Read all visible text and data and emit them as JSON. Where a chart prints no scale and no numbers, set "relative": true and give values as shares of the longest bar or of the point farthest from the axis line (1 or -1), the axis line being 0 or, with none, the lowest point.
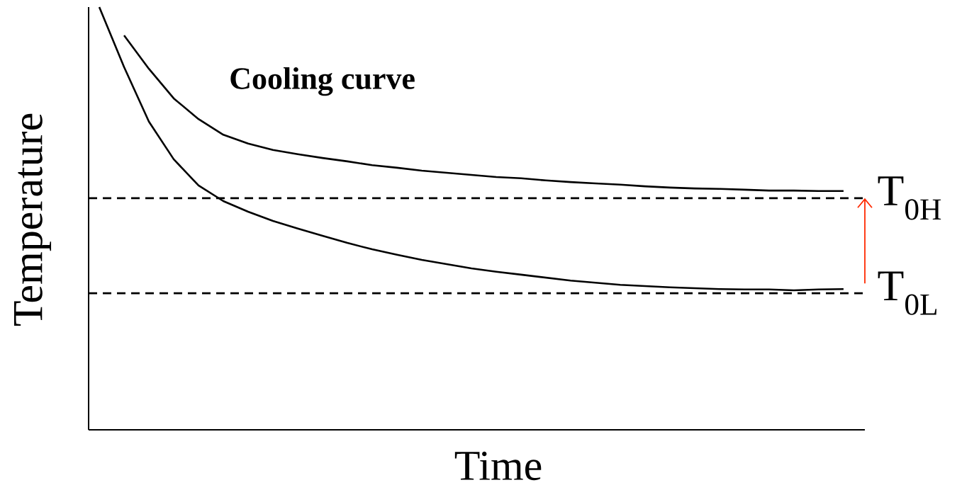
{
  "chart_data": {
    "type": "line",
    "title": "Cooling curve",
    "xlabel": "Time",
    "ylabel": "Temperature",
    "relative": true,
    "line_style": "solid",
    "marker": "none",
    "categories": [
      null,
      null,
      null,
      null,
      null,
      null,
      null,
      null,
      null,
      null,
      null,
      null,
      null,
      null,
      null,
      null,
      null,
      null,
      null,
      null,
      null,
      null,
      null,
      null,
      null,
      null,
      null,
      null,
      null,
      null,
      null
    ],
    "series": [
      {
        "color": "#000000",
        "values": [
          null,
          0.933,
          0.854,
          0.784,
          0.735,
          0.698,
          0.677,
          0.662,
          0.652,
          0.643,
          0.635,
          0.626,
          0.62,
          0.613,
          0.608,
          0.603,
          0.598,
          0.595,
          0.59,
          0.586,
          0.583,
          0.58,
          0.576,
          0.573,
          0.571,
          0.57,
          0.568,
          0.566,
          0.566,
          0.565,
          0.565
        ]
      },
      {
        "color": "#000000",
        "values": [
          1.0,
          0.858,
          0.729,
          0.64,
          0.578,
          0.541,
          0.516,
          0.494,
          0.476,
          0.459,
          0.442,
          0.427,
          0.414,
          0.402,
          0.392,
          0.382,
          0.374,
          0.367,
          0.36,
          0.353,
          0.348,
          0.343,
          0.34,
          0.337,
          0.335,
          0.333,
          0.332,
          0.332,
          0.33,
          0.332,
          0.333
        ]
      }
    ],
    "ref_lines": [
      {
        "axis": "y",
        "value": 0.548,
        "label": "T$_{0H}$",
        "color": "#000000",
        "line_style": "dashed"
      },
      {
        "axis": "y",
        "value": 0.323,
        "label": "T$_{0L}$",
        "color": "#000000",
        "line_style": "dashed"
      }
    ]
  }
}
